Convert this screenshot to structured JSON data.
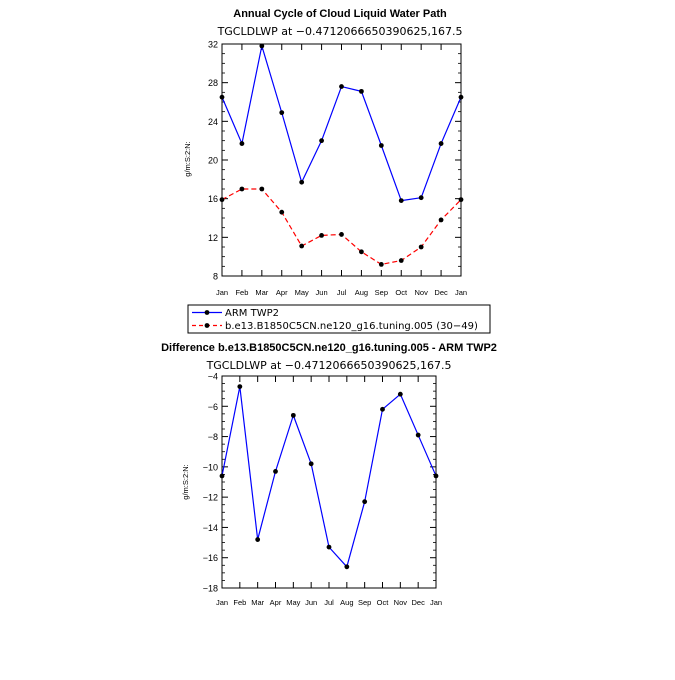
{
  "chart_data": [
    {
      "type": "line",
      "title": "Annual Cycle of Cloud Liquid Water Path",
      "subtitle": "TGCLDLWP  at  −0.4712066650390625,167.5",
      "ylabel": "g/m:S:2:N:",
      "xlabel": "",
      "ylim": [
        8,
        32
      ],
      "yticks": [
        8,
        12,
        16,
        20,
        24,
        28,
        32
      ],
      "ytick_labels": [
        "8",
        "12",
        "16",
        "20",
        "24",
        "28",
        "32"
      ],
      "categories": [
        "Jan",
        "Feb",
        "Mar",
        "Apr",
        "May",
        "Jun",
        "Jul",
        "Aug",
        "Sep",
        "Oct",
        "Nov",
        "Dec",
        "Jan"
      ],
      "series": [
        {
          "name": "ARM TWP2",
          "color": "#0000ff",
          "dash": "solid",
          "values": [
            26.5,
            21.7,
            31.8,
            24.9,
            17.7,
            22.0,
            27.6,
            27.1,
            21.5,
            15.8,
            16.1,
            21.7,
            26.5
          ]
        },
        {
          "name": "b.e13.B1850C5CN.ne120_g16.tuning.005 (30−49)",
          "color": "#ff0000",
          "dash": "dashed",
          "values": [
            15.9,
            17.0,
            17.0,
            14.6,
            11.1,
            12.2,
            12.3,
            10.5,
            9.2,
            9.6,
            11.0,
            13.8,
            15.9
          ]
        }
      ],
      "legend": "below"
    },
    {
      "type": "line",
      "title": "Difference b.e13.B1850C5CN.ne120_g16.tuning.005 - ARM TWP2",
      "subtitle": "TGCLDLWP  at  −0.4712066650390625,167.5",
      "ylabel": "g/m:S:2:N:",
      "xlabel": "",
      "ylim": [
        -18,
        -4
      ],
      "yticks": [
        -18,
        -16,
        -14,
        -12,
        -10,
        -8,
        -6,
        -4
      ],
      "ytick_labels": [
        "−18",
        "−16",
        "−14",
        "−12",
        "−10",
        "−8",
        "−6",
        "−4"
      ],
      "categories": [
        "Jan",
        "Feb",
        "Mar",
        "Apr",
        "May",
        "Jun",
        "Jul",
        "Aug",
        "Sep",
        "Oct",
        "Nov",
        "Dec",
        "Jan"
      ],
      "series": [
        {
          "name": "Difference",
          "color": "#0000ff",
          "dash": "solid",
          "values": [
            -10.6,
            -4.7,
            -14.8,
            -10.3,
            -6.6,
            -9.8,
            -15.3,
            -16.6,
            -12.3,
            -6.2,
            -5.2,
            -7.9,
            -10.6
          ]
        }
      ]
    }
  ]
}
